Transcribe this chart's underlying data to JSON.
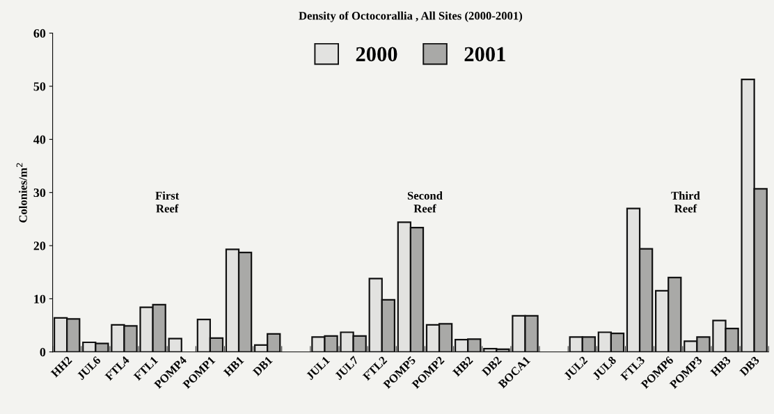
{
  "chart_data": {
    "type": "bar",
    "title": "Density of Octocorallia , All Sites (2000-2001)",
    "ylabel": "Colonies/m$^{2}$",
    "categories": [
      "HH2",
      "JUL6",
      "FTL4",
      "FTL1",
      "POMP4",
      "POMP1",
      "HB1",
      "DB1",
      null,
      "JUL1",
      "JUL7",
      "FTL2",
      "POMP5",
      "POMP2",
      "HB2",
      "DB2",
      "BOCA1",
      null,
      "JUL2",
      "JUL8",
      "FTL3",
      "POMP6",
      "POMP3",
      "HB3",
      "DB3"
    ],
    "series": [
      {
        "name": "2000",
        "color": "#e2e2e0",
        "values": [
          6.4,
          1.8,
          5.1,
          8.4,
          2.5,
          6.1,
          19.3,
          1.3,
          null,
          2.8,
          3.7,
          13.8,
          24.4,
          5.1,
          2.3,
          0.6,
          6.8,
          null,
          2.8,
          3.7,
          27.0,
          11.5,
          2.0,
          5.9,
          51.3
        ]
      },
      {
        "name": "2001",
        "color": "#a9a9a7",
        "values": [
          6.2,
          1.6,
          4.9,
          8.9,
          null,
          2.6,
          18.7,
          3.4,
          null,
          3.0,
          3.0,
          9.8,
          23.4,
          5.3,
          2.4,
          0.5,
          6.8,
          null,
          2.8,
          3.5,
          19.4,
          14.0,
          2.8,
          4.4,
          30.7
        ]
      }
    ],
    "ylim": [
      0,
      60
    ],
    "yticks": [
      0,
      10,
      20,
      30,
      40,
      50,
      60
    ],
    "grid": false,
    "legend": "top",
    "annotations": [
      "First\nReef",
      "Second\nReef",
      "Third\nReef"
    ]
  }
}
